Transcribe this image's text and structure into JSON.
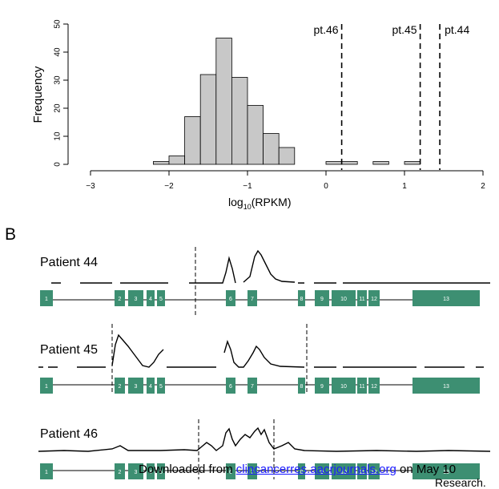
{
  "chart_data": {
    "type": "histogram",
    "ylabel": "Frequency",
    "xlabel_base": "log",
    "xlabel_sub": "10",
    "xlabel_rest": "(RPKM)",
    "xlim": [
      -3,
      2
    ],
    "ylim": [
      0,
      50
    ],
    "xticks": [
      -3,
      -2,
      -1,
      0,
      1,
      2
    ],
    "yticks": [
      0,
      10,
      20,
      30,
      40,
      50
    ],
    "bin_width": 0.2,
    "bins": [
      {
        "start": -2.2,
        "count": 1
      },
      {
        "start": -2.0,
        "count": 3
      },
      {
        "start": -1.8,
        "count": 17
      },
      {
        "start": -1.6,
        "count": 32
      },
      {
        "start": -1.4,
        "count": 45
      },
      {
        "start": -1.2,
        "count": 31
      },
      {
        "start": -1.0,
        "count": 21
      },
      {
        "start": -0.8,
        "count": 11
      },
      {
        "start": -0.6,
        "count": 6
      },
      {
        "start": 0.0,
        "count": 1
      },
      {
        "start": 0.2,
        "count": 1
      },
      {
        "start": 0.6,
        "count": 1
      },
      {
        "start": 1.0,
        "count": 1
      }
    ],
    "markers": [
      {
        "label": "pt.46",
        "x": 0.2
      },
      {
        "label": "pt.45",
        "x": 1.2
      },
      {
        "label": "pt.44",
        "x": 1.45
      }
    ]
  },
  "panel_b": {
    "letter": "B",
    "patients": [
      {
        "name": "Patient 44"
      },
      {
        "name": "Patient 45"
      },
      {
        "name": "Patient 46"
      }
    ],
    "exon_labels": [
      "1",
      "2",
      "3",
      "4",
      "5",
      "6",
      "7",
      "8",
      "9",
      "10",
      "11",
      "12",
      "13"
    ]
  },
  "footer": {
    "prefix": "Downloaded from ",
    "link": "clincancerres.aacrjournals.org",
    "suffix": " on May 10",
    "line2": "Research."
  },
  "colors": {
    "bar": "#c8c8c8",
    "exon": "#3d8f72"
  }
}
